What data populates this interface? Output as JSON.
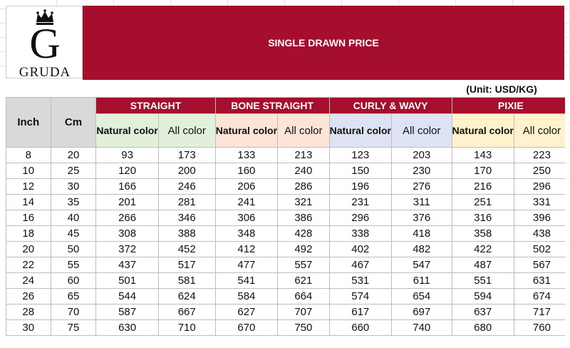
{
  "logo": {
    "letter": "G",
    "word": "GRUDA"
  },
  "banner": {
    "title": "SINGLE DRAWN PRICE"
  },
  "unit_note": "(Unit: USD/KG)",
  "table": {
    "row_headers": [
      "Inch",
      "Cm"
    ],
    "groups": [
      {
        "label": "STRAIGHT",
        "natural": "Natural color",
        "allcolor": "All color"
      },
      {
        "label": "BONE STRAIGHT",
        "natural": "Natural color",
        "allcolor": "All color"
      },
      {
        "label": "CURLY & WAVY",
        "natural": "Natural color",
        "allcolor": "All color"
      },
      {
        "label": "PIXIE",
        "natural": "Natural color",
        "allcolor": "All color"
      }
    ],
    "rows": [
      [
        "8",
        "20",
        "93",
        "173",
        "133",
        "213",
        "123",
        "203",
        "143",
        "223"
      ],
      [
        "10",
        "25",
        "120",
        "200",
        "160",
        "240",
        "150",
        "230",
        "170",
        "250"
      ],
      [
        "12",
        "30",
        "166",
        "246",
        "206",
        "286",
        "196",
        "276",
        "216",
        "296"
      ],
      [
        "14",
        "35",
        "201",
        "281",
        "241",
        "321",
        "231",
        "311",
        "251",
        "331"
      ],
      [
        "16",
        "40",
        "266",
        "346",
        "306",
        "386",
        "296",
        "376",
        "316",
        "396"
      ],
      [
        "18",
        "45",
        "308",
        "388",
        "348",
        "428",
        "338",
        "418",
        "358",
        "438"
      ],
      [
        "20",
        "50",
        "372",
        "452",
        "412",
        "492",
        "402",
        "482",
        "422",
        "502"
      ],
      [
        "22",
        "55",
        "437",
        "517",
        "477",
        "557",
        "467",
        "547",
        "487",
        "567"
      ],
      [
        "24",
        "60",
        "501",
        "581",
        "541",
        "621",
        "531",
        "611",
        "551",
        "631"
      ],
      [
        "26",
        "65",
        "544",
        "624",
        "584",
        "664",
        "574",
        "654",
        "594",
        "674"
      ],
      [
        "28",
        "70",
        "587",
        "667",
        "627",
        "707",
        "617",
        "697",
        "637",
        "717"
      ],
      [
        "30",
        "75",
        "630",
        "710",
        "670",
        "750",
        "660",
        "740",
        "680",
        "760"
      ]
    ]
  }
}
